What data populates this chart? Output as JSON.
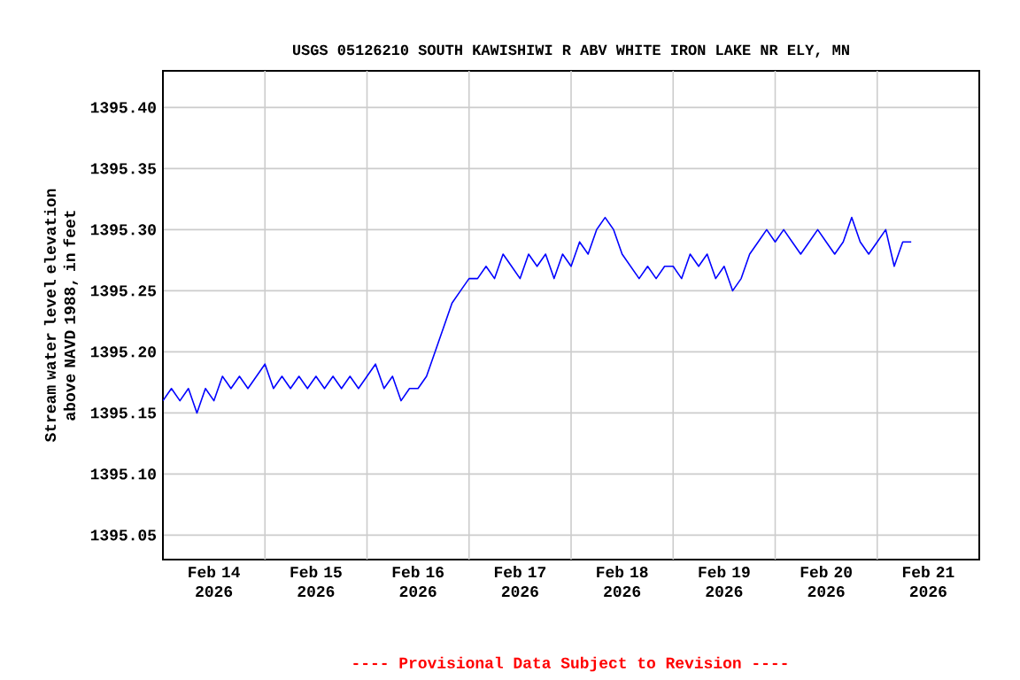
{
  "chart_data": {
    "type": "line",
    "title": "USGS 05126210 SOUTH KAWISHIWI R ABV WHITE IRON LAKE NR ELY, MN",
    "ylabel": "Stream water level elevation above NAVD 1988, in feet",
    "annotations": [
      "---- Provisional Data Subject to Revision ----"
    ],
    "x": [
      "2026-02-14T00:00",
      "2026-02-14T02:00",
      "2026-02-14T04:00",
      "2026-02-14T06:00",
      "2026-02-14T08:00",
      "2026-02-14T10:00",
      "2026-02-14T12:00",
      "2026-02-14T14:00",
      "2026-02-14T16:00",
      "2026-02-14T18:00",
      "2026-02-14T20:00",
      "2026-02-14T22:00",
      "2026-02-15T00:00",
      "2026-02-15T02:00",
      "2026-02-15T04:00",
      "2026-02-15T06:00",
      "2026-02-15T08:00",
      "2026-02-15T10:00",
      "2026-02-15T12:00",
      "2026-02-15T14:00",
      "2026-02-15T16:00",
      "2026-02-15T18:00",
      "2026-02-15T20:00",
      "2026-02-15T22:00",
      "2026-02-16T00:00",
      "2026-02-16T02:00",
      "2026-02-16T04:00",
      "2026-02-16T06:00",
      "2026-02-16T08:00",
      "2026-02-16T10:00",
      "2026-02-16T12:00",
      "2026-02-16T14:00",
      "2026-02-16T16:00",
      "2026-02-16T18:00",
      "2026-02-16T20:00",
      "2026-02-16T22:00",
      "2026-02-17T00:00",
      "2026-02-17T02:00",
      "2026-02-17T04:00",
      "2026-02-17T06:00",
      "2026-02-17T08:00",
      "2026-02-17T10:00",
      "2026-02-17T12:00",
      "2026-02-17T14:00",
      "2026-02-17T16:00",
      "2026-02-17T18:00",
      "2026-02-17T20:00",
      "2026-02-17T22:00",
      "2026-02-18T00:00",
      "2026-02-18T02:00",
      "2026-02-18T04:00",
      "2026-02-18T06:00",
      "2026-02-18T08:00",
      "2026-02-18T10:00",
      "2026-02-18T12:00",
      "2026-02-18T14:00",
      "2026-02-18T16:00",
      "2026-02-18T18:00",
      "2026-02-18T20:00",
      "2026-02-18T22:00",
      "2026-02-19T00:00",
      "2026-02-19T02:00",
      "2026-02-19T04:00",
      "2026-02-19T06:00",
      "2026-02-19T08:00",
      "2026-02-19T10:00",
      "2026-02-19T12:00",
      "2026-02-19T14:00",
      "2026-02-19T16:00",
      "2026-02-19T18:00",
      "2026-02-19T20:00",
      "2026-02-19T22:00",
      "2026-02-20T00:00",
      "2026-02-20T02:00",
      "2026-02-20T04:00",
      "2026-02-20T06:00",
      "2026-02-20T08:00",
      "2026-02-20T10:00",
      "2026-02-20T12:00",
      "2026-02-20T14:00",
      "2026-02-20T16:00",
      "2026-02-20T18:00",
      "2026-02-20T20:00",
      "2026-02-20T22:00",
      "2026-02-21T00:00",
      "2026-02-21T02:00",
      "2026-02-21T04:00",
      "2026-02-21T06:00",
      "2026-02-21T08:00"
    ],
    "values": [
      1395.16,
      1395.17,
      1395.16,
      1395.17,
      1395.15,
      1395.17,
      1395.16,
      1395.18,
      1395.17,
      1395.18,
      1395.17,
      1395.18,
      1395.19,
      1395.17,
      1395.18,
      1395.17,
      1395.18,
      1395.17,
      1395.18,
      1395.17,
      1395.18,
      1395.17,
      1395.18,
      1395.17,
      1395.18,
      1395.19,
      1395.17,
      1395.18,
      1395.16,
      1395.17,
      1395.17,
      1395.18,
      1395.2,
      1395.22,
      1395.24,
      1395.25,
      1395.26,
      1395.26,
      1395.27,
      1395.26,
      1395.28,
      1395.27,
      1395.26,
      1395.28,
      1395.27,
      1395.28,
      1395.26,
      1395.28,
      1395.27,
      1395.29,
      1395.28,
      1395.3,
      1395.31,
      1395.3,
      1395.28,
      1395.27,
      1395.26,
      1395.27,
      1395.26,
      1395.27,
      1395.27,
      1395.26,
      1395.28,
      1395.27,
      1395.28,
      1395.26,
      1395.27,
      1395.25,
      1395.26,
      1395.28,
      1395.29,
      1395.3,
      1395.29,
      1395.3,
      1395.29,
      1395.28,
      1395.29,
      1395.3,
      1395.29,
      1395.28,
      1395.29,
      1395.31,
      1395.29,
      1395.28,
      1395.29,
      1395.3,
      1395.27,
      1395.29,
      1395.29
    ],
    "color": "#0000ff",
    "xlim": [
      "2026-02-14T00:00",
      "2026-02-22T00:00"
    ],
    "xticks": [
      {
        "value": "2026-02-14T12:00",
        "label": "Feb 14 2026"
      },
      {
        "value": "2026-02-15T12:00",
        "label": "Feb 15 2026"
      },
      {
        "value": "2026-02-16T12:00",
        "label": "Feb 16 2026"
      },
      {
        "value": "2026-02-17T12:00",
        "label": "Feb 17 2026"
      },
      {
        "value": "2026-02-18T12:00",
        "label": "Feb 18 2026"
      },
      {
        "value": "2026-02-19T12:00",
        "label": "Feb 19 2026"
      },
      {
        "value": "2026-02-20T12:00",
        "label": "Feb 20 2026"
      },
      {
        "value": "2026-02-21T12:00",
        "label": "Feb 21 2026"
      },
      {
        "value": "2026-02-15T00:00",
        "label": null
      },
      {
        "value": "2026-02-16T00:00",
        "label": null
      },
      {
        "value": "2026-02-17T00:00",
        "label": null
      },
      {
        "value": "2026-02-18T00:00",
        "label": null
      },
      {
        "value": "2026-02-19T00:00",
        "label": null
      },
      {
        "value": "2026-02-20T00:00",
        "label": null
      },
      {
        "value": "2026-02-21T00:00",
        "label": null
      }
    ],
    "ylim": [
      1395.03,
      1395.43
    ],
    "yticks": [
      {
        "value": 1395.05,
        "label": "1395.05"
      },
      {
        "value": 1395.1,
        "label": "1395.10"
      },
      {
        "value": 1395.15,
        "label": "1395.15"
      },
      {
        "value": 1395.2,
        "label": "1395.20"
      },
      {
        "value": 1395.25,
        "label": "1395.25"
      },
      {
        "value": 1395.3,
        "label": "1395.30"
      },
      {
        "value": 1395.35,
        "label": "1395.35"
      },
      {
        "value": 1395.4,
        "label": "1395.40"
      }
    ],
    "grid": true
  }
}
